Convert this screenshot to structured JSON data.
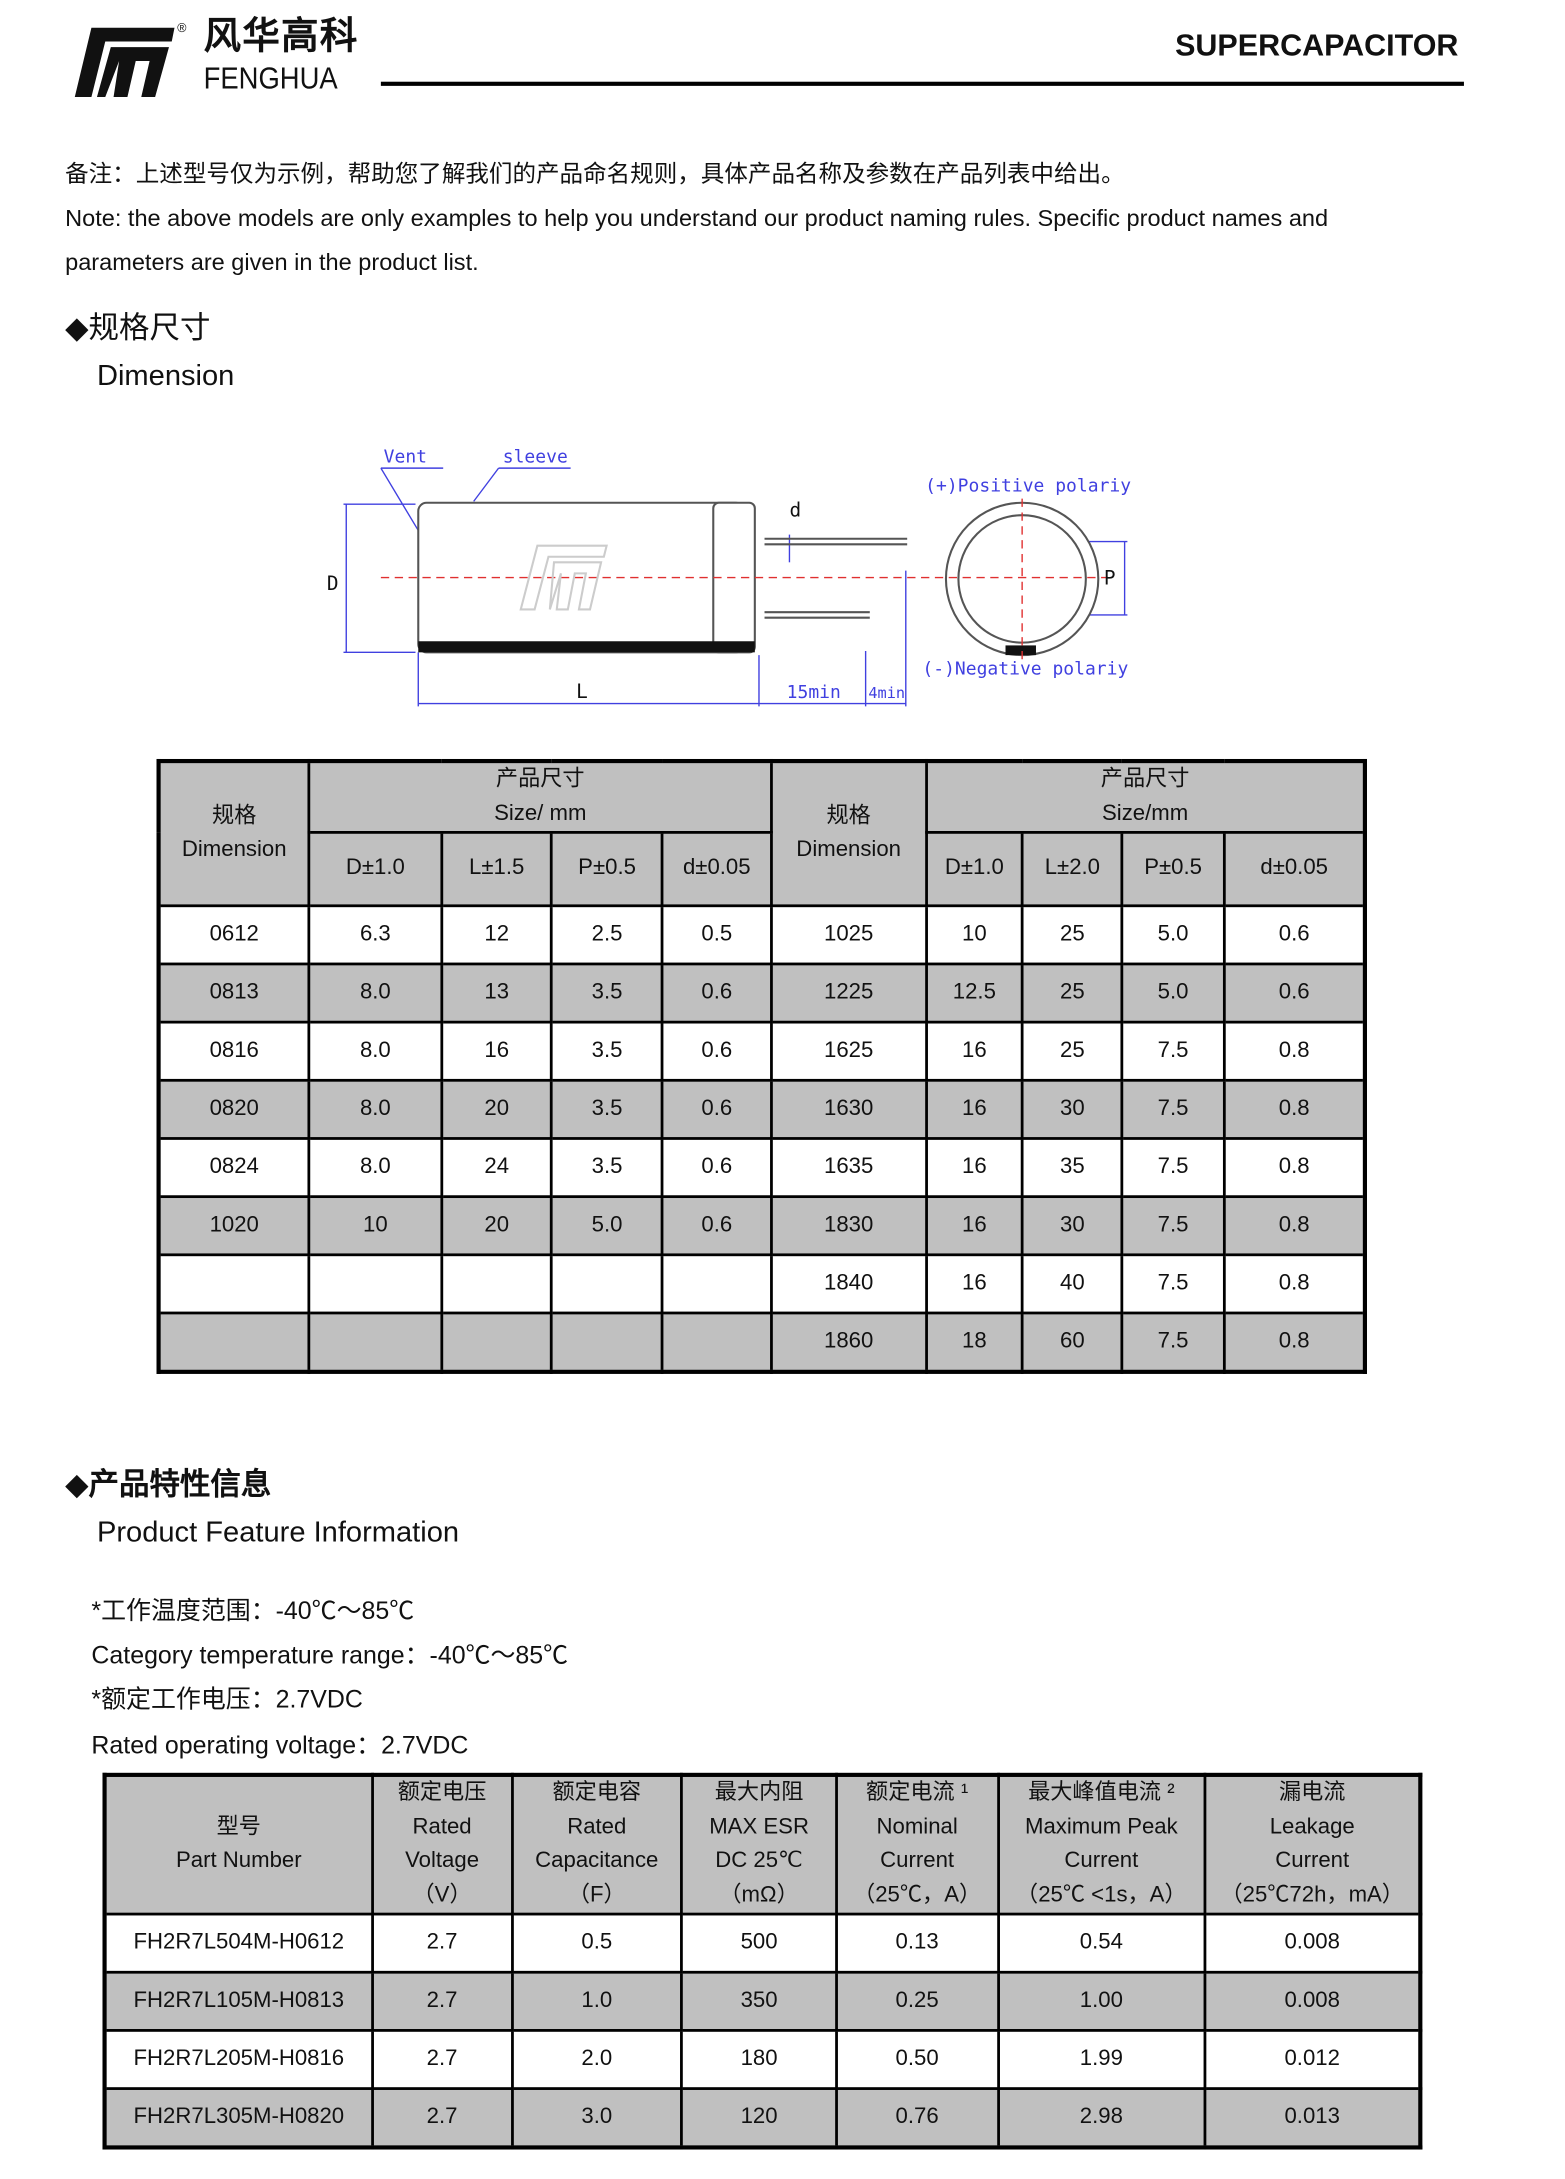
{
  "header": {
    "logo_cn": "风华高科",
    "logo_en": "FENGHUA",
    "logo_reg": "®",
    "title": "SUPERCAPACITOR"
  },
  "note": {
    "cn": "备注：上述型号仅为示例，帮助您了解我们的产品命名规则，具体产品名称及参数在产品列表中给出。",
    "en_line1": "Note: the above models are only examples to help you understand our product naming rules. Specific product names and",
    "en_line2": "parameters are given in the product list."
  },
  "dimension_section": {
    "title_cn": "◆规格尺寸",
    "title_en": "Dimension"
  },
  "diagram": {
    "vent": "Vent",
    "sleeve": "sleeve",
    "d": "d",
    "D": "D",
    "L": "L",
    "min15": "15min",
    "min4": "4min",
    "P": "P",
    "positive": "(+)Positive  polariy",
    "negative": "(-)Negative  polariy"
  },
  "dimension_table": {
    "head_dim_cn": "规格",
    "head_dim_en": "Dimension",
    "head_size_cn": "产品尺寸",
    "head_size_en_left": "Size/ mm",
    "head_size_en_right": "Size/mm",
    "sub_left": [
      "D±1.0",
      "L±1.5",
      "P±0.5",
      "d±0.05"
    ],
    "sub_right": [
      "D±1.0",
      "L±2.0",
      "P±0.5",
      "d±0.05"
    ],
    "rows": [
      [
        "0612",
        "6.3",
        "12",
        "2.5",
        "0.5",
        "1025",
        "10",
        "25",
        "5.0",
        "0.6"
      ],
      [
        "0813",
        "8.0",
        "13",
        "3.5",
        "0.6",
        "1225",
        "12.5",
        "25",
        "5.0",
        "0.6"
      ],
      [
        "0816",
        "8.0",
        "16",
        "3.5",
        "0.6",
        "1625",
        "16",
        "25",
        "7.5",
        "0.8"
      ],
      [
        "0820",
        "8.0",
        "20",
        "3.5",
        "0.6",
        "1630",
        "16",
        "30",
        "7.5",
        "0.8"
      ],
      [
        "0824",
        "8.0",
        "24",
        "3.5",
        "0.6",
        "1635",
        "16",
        "35",
        "7.5",
        "0.8"
      ],
      [
        "1020",
        "10",
        "20",
        "5.0",
        "0.6",
        "1830",
        "16",
        "30",
        "7.5",
        "0.8"
      ],
      [
        "",
        "",
        "",
        "",
        "",
        "1840",
        "16",
        "40",
        "7.5",
        "0.8"
      ],
      [
        "",
        "",
        "",
        "",
        "",
        "1860",
        "18",
        "60",
        "7.5",
        "0.8"
      ]
    ]
  },
  "feature_section": {
    "title_cn": "◆产品特性信息",
    "title_en": "Product Feature Information",
    "temp_cn": "*工作温度范围：-40℃～85℃",
    "temp_en": "Category temperature range：-40℃～85℃",
    "volt_cn": "*额定工作电压：2.7VDC",
    "volt_en": "Rated operating voltage：2.7VDC"
  },
  "feature_table": {
    "headers": [
      [
        "型号",
        "Part Number"
      ],
      [
        "额定电压",
        "Rated",
        "Voltage",
        "（V）"
      ],
      [
        "额定电容",
        "Rated",
        "Capacitance",
        "（F）"
      ],
      [
        "最大内阻",
        "MAX ESR",
        "DC 25℃",
        "（mΩ）"
      ],
      [
        "额定电流 ¹",
        "Nominal",
        "Current",
        "（25℃，A）"
      ],
      [
        "最大峰值电流 ²",
        "Maximum Peak",
        "Current",
        "（25℃ <1s，A）"
      ],
      [
        "漏电流",
        "Leakage",
        "Current",
        "（25℃72h，mA）"
      ]
    ],
    "rows": [
      [
        "FH2R7L504M-H0612",
        "2.7",
        "0.5",
        "500",
        "0.13",
        "0.54",
        "0.008"
      ],
      [
        "FH2R7L105M-H0813",
        "2.7",
        "1.0",
        "350",
        "0.25",
        "1.00",
        "0.008"
      ],
      [
        "FH2R7L205M-H0816",
        "2.7",
        "2.0",
        "180",
        "0.50",
        "1.99",
        "0.012"
      ],
      [
        "FH2R7L305M-H0820",
        "2.7",
        "3.0",
        "120",
        "0.76",
        "2.98",
        "0.013"
      ]
    ]
  },
  "colors": {
    "row_gray": "#c0c0c0",
    "diagram_blue": "#3a3adf",
    "centerline_red": "#e03030"
  }
}
